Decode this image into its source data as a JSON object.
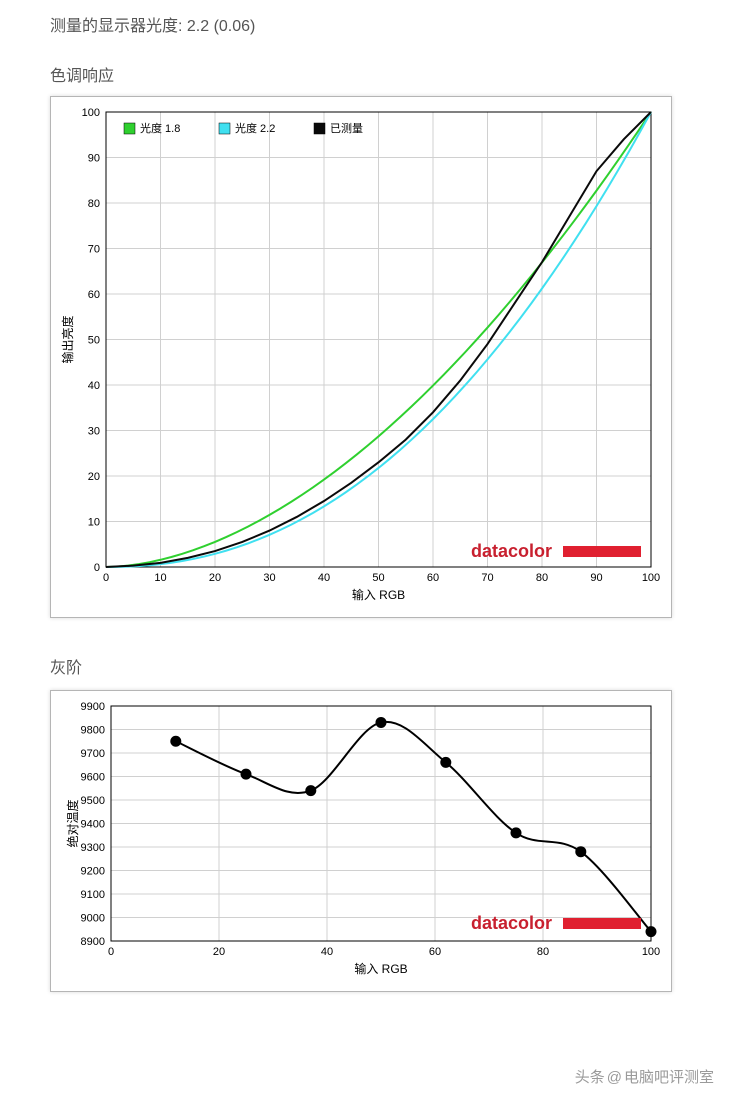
{
  "header_text": "测量的显示器光度: 2.2 (0.06)",
  "section1_title": "色调响应",
  "section2_title": "灰阶",
  "watermark": {
    "prefix": "头条",
    "at": "@",
    "name": "电脑吧评测室"
  },
  "brand": {
    "text": "datacolor",
    "text_color": "#c8202f",
    "bar_color": "#e02030"
  },
  "chart1": {
    "type": "line",
    "background_color": "#ffffff",
    "grid_color": "#d0d0d0",
    "axis_color": "#000000",
    "xlabel": "输入 RGB",
    "ylabel": "输出亮度",
    "xlim": [
      0,
      100
    ],
    "ylim": [
      0,
      100
    ],
    "xtick_step": 10,
    "ytick_step": 10,
    "legend": [
      {
        "label": "光度 1.8",
        "swatch_color": "#2fd02f"
      },
      {
        "label": "光度 2.2",
        "swatch_color": "#40e0f0"
      },
      {
        "label": "已测量",
        "swatch_color": "#0a0a0a"
      }
    ],
    "series": [
      {
        "name": "gamma18",
        "color": "#2fd02f",
        "width": 2,
        "gamma": 1.8
      },
      {
        "name": "gamma22",
        "color": "#40e0f0",
        "width": 2,
        "gamma": 2.2
      },
      {
        "name": "measured",
        "color": "#0a0a0a",
        "width": 2.2,
        "x": [
          0,
          5,
          10,
          15,
          20,
          25,
          30,
          35,
          40,
          45,
          50,
          55,
          60,
          65,
          70,
          75,
          80,
          85,
          90,
          95,
          100
        ],
        "y": [
          0,
          0.3,
          0.9,
          2.0,
          3.5,
          5.5,
          8.0,
          11,
          14.5,
          18.5,
          23,
          28,
          34,
          41,
          49,
          58,
          67,
          77,
          87,
          94,
          100
        ]
      }
    ]
  },
  "chart2": {
    "type": "line-marker",
    "background_color": "#ffffff",
    "grid_color": "#d0d0d0",
    "axis_color": "#000000",
    "xlabel": "输入 RGB",
    "ylabel": "绝对温度",
    "xlim": [
      0,
      100
    ],
    "ylim": [
      8900,
      9900
    ],
    "xtick_step": 20,
    "ytick_step": 100,
    "series": {
      "color": "#000000",
      "width": 2.5,
      "marker_color": "#000000",
      "marker_radius": 5,
      "x": [
        12,
        25,
        37,
        50,
        62,
        75,
        87,
        100
      ],
      "y": [
        9750,
        9610,
        9540,
        9830,
        9660,
        9360,
        9280,
        8940
      ]
    }
  }
}
